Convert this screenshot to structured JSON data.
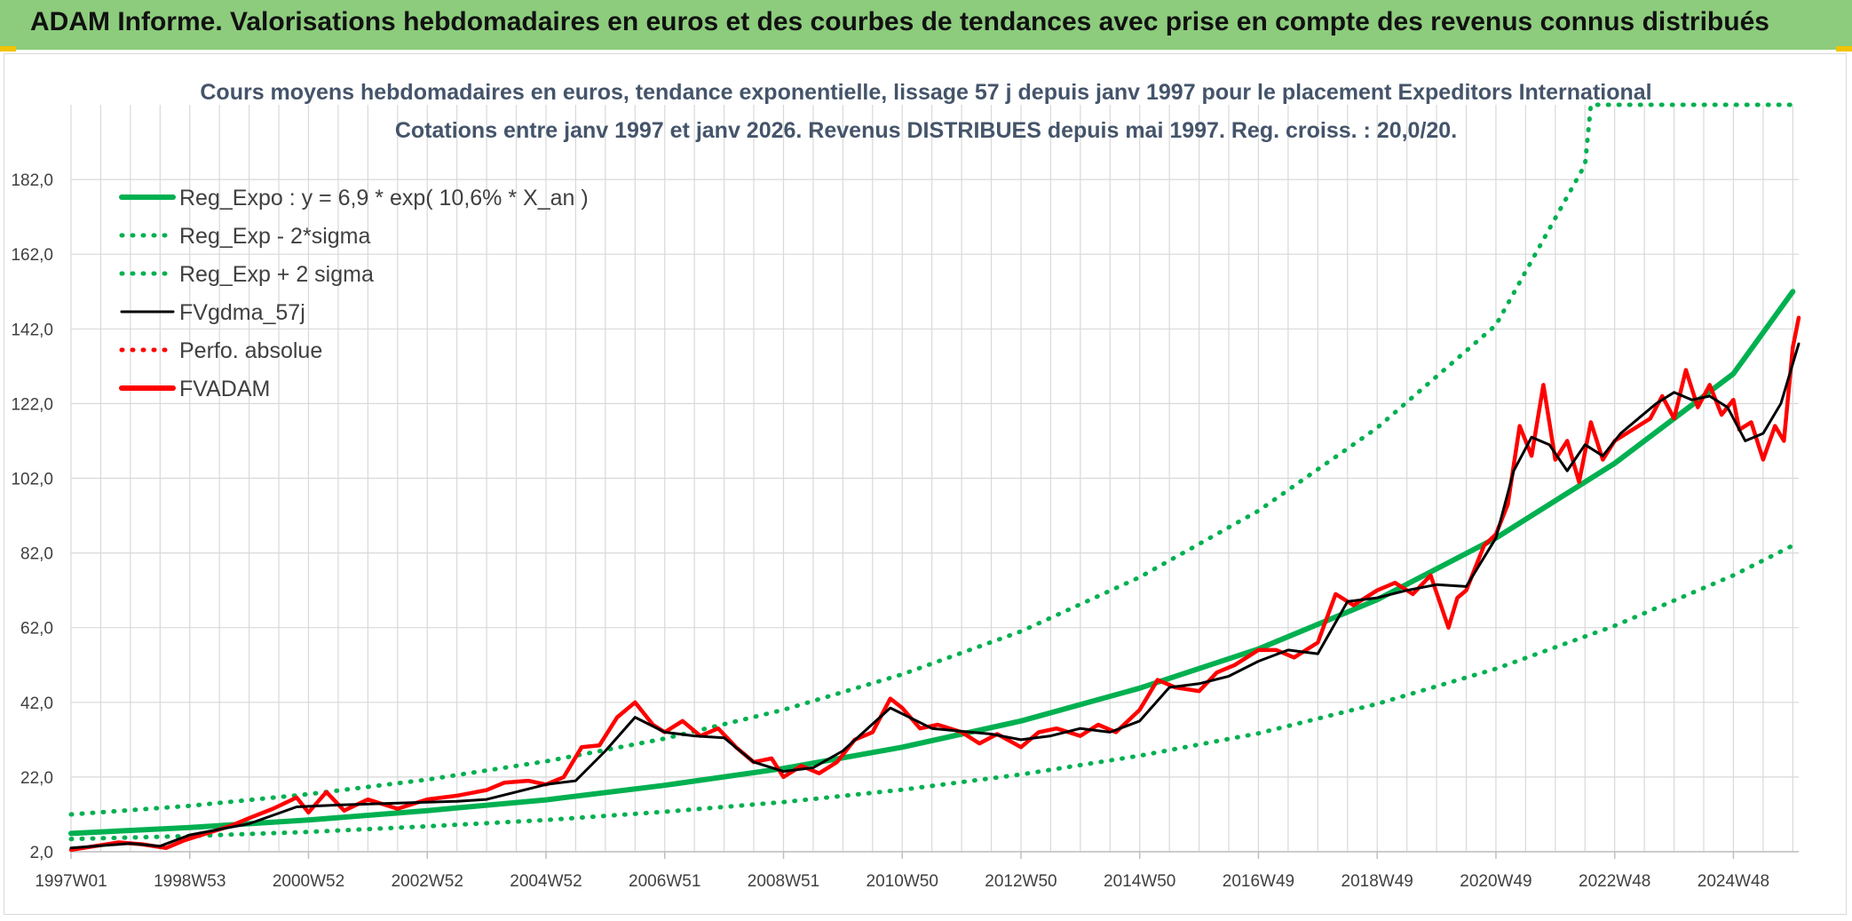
{
  "banner": {
    "title": "ADAM Informe. Valorisations hebdomadaires en euros et des courbes de tendances avec prise en compte des revenus connus distribués"
  },
  "colors": {
    "banner_bg": "#8ccc7c",
    "reg_expo": "#00b050",
    "fvgdma": "#000000",
    "fvadam": "#ff0000",
    "title_text": "#44546a"
  },
  "chart_data": {
    "type": "line",
    "title": "Cours moyens hebdomadaires en euros, tendance exponentielle, lissage 57 j depuis janv 1997 pour le placement Expeditors International",
    "subtitle": "Cotations entre janv 1997 et janv 2026. Revenus DISTRIBUES depuis mai 1997. Reg. croiss. : 20,0/20.",
    "xlabel": "",
    "ylabel": "",
    "ylim": [
      2,
      202
    ],
    "xlim": [
      1997.0,
      2026.1
    ],
    "y_ticks": [
      "182,0",
      "162,0",
      "142,0",
      "122,0",
      "102,0",
      "82,0",
      "62,0",
      "42,0",
      "22,0",
      "2,0"
    ],
    "y_tick_values": [
      182,
      162,
      142,
      122,
      102,
      82,
      62,
      42,
      22,
      2
    ],
    "x_ticks": [
      "1997W01",
      "1998W53",
      "2000W52",
      "2002W52",
      "2004W52",
      "2006W51",
      "2008W51",
      "2010W50",
      "2012W50",
      "2014W50",
      "2016W49",
      "2018W49",
      "2020W49",
      "2022W48",
      "2024W48"
    ],
    "x_tick_years": [
      1997.0,
      1999.0,
      2001.0,
      2003.0,
      2005.0,
      2007.0,
      2009.0,
      2011.0,
      2013.0,
      2015.0,
      2017.0,
      2019.0,
      2021.0,
      2023.0,
      2025.0
    ],
    "grid": true,
    "legend_position": "top-left",
    "series": [
      {
        "name": "Reg_Expo : y = 6,9 * exp( 10,6% *  X_an )",
        "style": "solid-thick",
        "color": "#00b050",
        "x": [
          1997,
          1999,
          2001,
          2003,
          2005,
          2007,
          2009,
          2011,
          2013,
          2015,
          2017,
          2019,
          2021,
          2023,
          2025,
          2026
        ],
        "y": [
          6.9,
          8.5,
          10.5,
          13.0,
          15.9,
          19.8,
          24.3,
          30.0,
          37.0,
          45.8,
          56.3,
          69.5,
          86.0,
          106.0,
          130.0,
          152.0
        ]
      },
      {
        "name": "Reg_Exp - 2*sigma",
        "style": "dotted",
        "color": "#00b050",
        "x": [
          1997,
          1999,
          2001,
          2003,
          2005,
          2007,
          2009,
          2011,
          2013,
          2015,
          2017,
          2019,
          2021,
          2023,
          2025,
          2026
        ],
        "y": [
          5.4,
          6.2,
          7.3,
          8.8,
          10.5,
          12.7,
          15.3,
          18.6,
          22.7,
          27.7,
          33.7,
          41.6,
          51.0,
          62.5,
          76.0,
          84.0
        ]
      },
      {
        "name": "Reg_Exp + 2 sigma",
        "style": "dotted",
        "color": "#00b050",
        "x": [
          1997,
          1999,
          2001,
          2003,
          2005,
          2007,
          2009,
          2011,
          2013,
          2015,
          2017,
          2019,
          2021,
          2022.5,
          2022.6,
          2026
        ],
        "y": [
          12.0,
          14.3,
          17.4,
          21.3,
          26.2,
          32.3,
          40.0,
          49.5,
          61.0,
          75.5,
          93.3,
          115.5,
          143.0,
          186.0,
          202.0,
          202.0
        ]
      },
      {
        "name": "FVgdma_57j",
        "style": "solid",
        "color": "#000000",
        "x": [
          1997.0,
          1998.0,
          1998.5,
          1999.0,
          2000.0,
          2000.8,
          2001.5,
          2002.5,
          2003.5,
          2004.0,
          2005.0,
          2005.5,
          2006.0,
          2006.5,
          2007.0,
          2007.5,
          2008.0,
          2008.5,
          2009.0,
          2009.5,
          2010.0,
          2010.8,
          2011.5,
          2012.5,
          2013.0,
          2013.5,
          2014.0,
          2014.5,
          2015.0,
          2015.5,
          2016.0,
          2016.5,
          2017.0,
          2017.5,
          2018.0,
          2018.5,
          2019.0,
          2019.5,
          2020.0,
          2020.5,
          2021.0,
          2021.3,
          2021.6,
          2021.9,
          2022.2,
          2022.5,
          2022.8,
          2023.1,
          2023.4,
          2023.7,
          2024.0,
          2024.3,
          2024.6,
          2024.9,
          2025.2,
          2025.5,
          2025.8,
          2026.1
        ],
        "y": [
          3.0,
          4.2,
          3.5,
          6.5,
          9.5,
          14.0,
          14.5,
          15.0,
          15.5,
          16.0,
          20.0,
          21.0,
          29.0,
          38.0,
          34.0,
          33.0,
          32.5,
          26.0,
          23.5,
          24.5,
          29.0,
          40.5,
          35.0,
          33.5,
          32.0,
          33.0,
          35.0,
          34.0,
          37.0,
          46.0,
          47.0,
          49.0,
          53.0,
          56.0,
          55.0,
          69.0,
          70.0,
          72.0,
          73.5,
          73.0,
          86.0,
          104.0,
          113.0,
          111.0,
          104.0,
          111.0,
          108.0,
          114.0,
          118.0,
          122.0,
          125.0,
          123.0,
          124.0,
          121.0,
          112.0,
          114.0,
          122.0,
          138.0
        ]
      },
      {
        "name": "Perfo. absolue",
        "style": "dotted",
        "color": "#ff0000",
        "x": [],
        "y": []
      },
      {
        "name": "FVADAM",
        "style": "solid-thick",
        "color": "#ff0000",
        "x": [
          1997.0,
          1997.4,
          1997.8,
          1998.2,
          1998.6,
          1998.9,
          1999.3,
          1999.7,
          2000.0,
          2000.4,
          2000.8,
          2001.0,
          2001.3,
          2001.6,
          2002.0,
          2002.5,
          2003.0,
          2003.5,
          2004.0,
          2004.3,
          2004.7,
          2005.0,
          2005.3,
          2005.6,
          2005.9,
          2006.2,
          2006.5,
          2006.8,
          2007.0,
          2007.3,
          2007.6,
          2007.9,
          2008.2,
          2008.5,
          2008.8,
          2009.0,
          2009.3,
          2009.6,
          2009.9,
          2010.2,
          2010.5,
          2010.8,
          2011.0,
          2011.3,
          2011.6,
          2012.0,
          2012.3,
          2012.6,
          2013.0,
          2013.3,
          2013.6,
          2014.0,
          2014.3,
          2014.6,
          2015.0,
          2015.3,
          2015.6,
          2016.0,
          2016.3,
          2016.6,
          2017.0,
          2017.3,
          2017.6,
          2018.0,
          2018.3,
          2018.6,
          2019.0,
          2019.3,
          2019.6,
          2019.9,
          2020.2,
          2020.35,
          2020.5,
          2020.8,
          2021.0,
          2021.2,
          2021.4,
          2021.6,
          2021.8,
          2022.0,
          2022.2,
          2022.4,
          2022.6,
          2022.8,
          2023.0,
          2023.2,
          2023.4,
          2023.6,
          2023.8,
          2024.0,
          2024.2,
          2024.4,
          2024.6,
          2024.8,
          2025.0,
          2025.1,
          2025.3,
          2025.5,
          2025.7,
          2025.85,
          2026.0,
          2026.1
        ],
        "y": [
          2.5,
          3.5,
          4.5,
          4.0,
          3.0,
          5.0,
          7.0,
          9.0,
          11.0,
          13.5,
          16.5,
          12.5,
          18.0,
          13.0,
          16.0,
          13.5,
          16.0,
          17.0,
          18.5,
          20.5,
          21.0,
          20.0,
          22.0,
          30.0,
          30.5,
          38.0,
          42.0,
          36.0,
          34.0,
          37.0,
          33.0,
          35.0,
          30.0,
          26.0,
          27.0,
          22.0,
          25.0,
          23.0,
          26.0,
          32.0,
          34.0,
          43.0,
          40.5,
          35.0,
          36.0,
          34.0,
          31.0,
          33.5,
          30.0,
          34.0,
          35.0,
          33.0,
          36.0,
          34.0,
          40.0,
          48.0,
          46.0,
          45.0,
          50.0,
          52.0,
          56.0,
          56.0,
          54.0,
          58.0,
          71.0,
          68.0,
          72.0,
          74.0,
          71.0,
          76.0,
          62.0,
          70.0,
          72.0,
          84.0,
          87.0,
          95.0,
          116.0,
          108.0,
          127.0,
          107.0,
          112.0,
          101.0,
          117.0,
          107.0,
          112.0,
          114.0,
          116.0,
          118.0,
          124.0,
          118.0,
          131.0,
          121.0,
          127.0,
          119.0,
          123.0,
          115.0,
          117.0,
          107.0,
          116.0,
          112.0,
          137.0,
          145.0
        ]
      }
    ]
  }
}
